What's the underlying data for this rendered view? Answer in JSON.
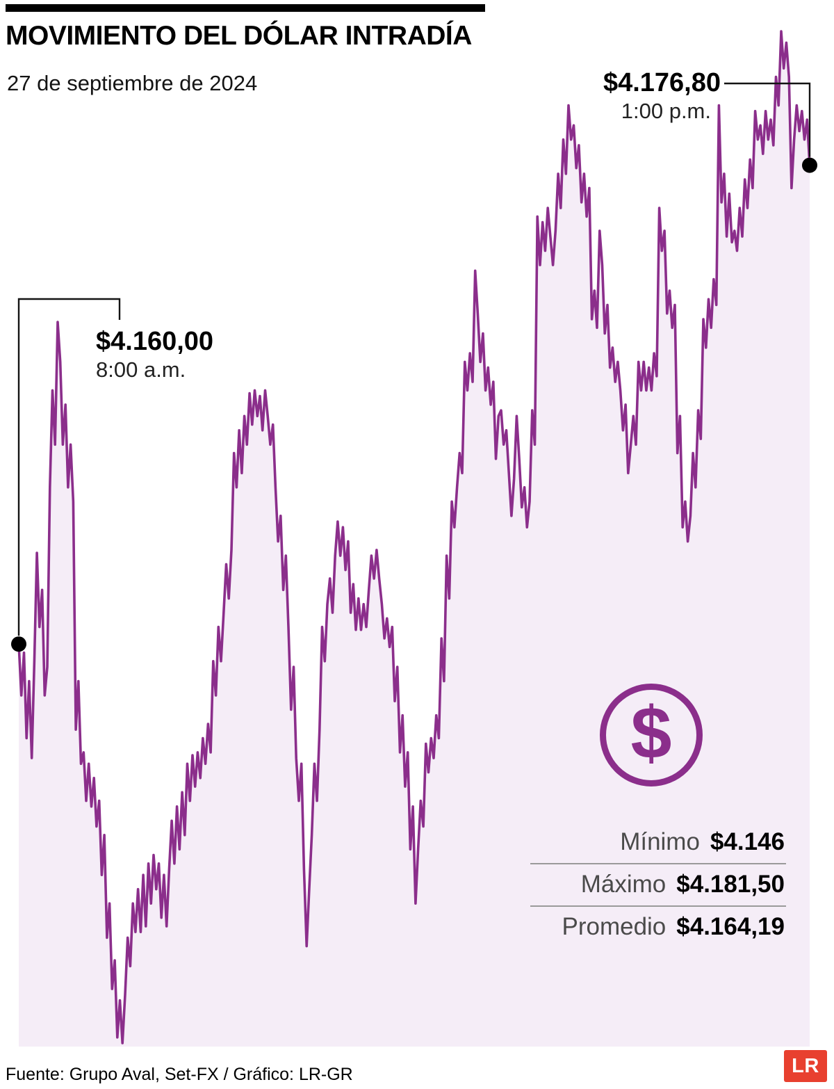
{
  "header": {
    "title": "MOVIMIENTO DEL DÓLAR INTRADÍA",
    "date": "27 de septiembre de 2024"
  },
  "annotations": {
    "start": {
      "value": "$4.160,00",
      "time": "8:00 a.m."
    },
    "end": {
      "value": "$4.176,80",
      "time": "1:00 p.m."
    }
  },
  "stats": {
    "rows": [
      {
        "label": "Mínimo",
        "value": "$4.146"
      },
      {
        "label": "Máximo",
        "value": "$4.181,50"
      },
      {
        "label": "Promedio",
        "value": "$4.164,19"
      }
    ]
  },
  "icon": {
    "dollar": "$"
  },
  "footer": {
    "source": "Fuente: Grupo Aval, Set-FX / Gráfico: LR-GR",
    "logo": "LR"
  },
  "colors": {
    "line": "#8B2E8B",
    "fill": "#F5EDF7",
    "dot": "#000000",
    "logo_bg": "#E8402F"
  },
  "chart_data": {
    "type": "area",
    "title": "Movimiento del dólar intradía",
    "x_start_label": "8:00 a.m.",
    "x_end_label": "1:00 p.m.",
    "start_value": 4160.0,
    "end_value": 4176.8,
    "min": 4146,
    "max": 4181.5,
    "avg": 4164.19,
    "ylim": [
      4146,
      4181.5
    ],
    "grid": false,
    "legend": false,
    "values": [
      4160.0,
      4158.2,
      4159.7,
      4156.7,
      4158.7,
      4156.0,
      4159.4,
      4163.2,
      4160.6,
      4161.9,
      4158.2,
      4159.2,
      4165.5,
      4168.9,
      4167.0,
      4171.3,
      4169.9,
      4167.0,
      4168.4,
      4165.5,
      4167.0,
      4165.0,
      4157.0,
      4158.7,
      4155.8,
      4156.2,
      4154.5,
      4155.8,
      4154.3,
      4155.3,
      4153.6,
      4154.5,
      4151.9,
      4153.3,
      4149.7,
      4150.9,
      4147.9,
      4148.9,
      4146.2,
      4147.5,
      4146.0,
      4147.7,
      4149.7,
      4148.7,
      4150.9,
      4149.9,
      4151.4,
      4149.9,
      4151.9,
      4150.1,
      4152.3,
      4150.9,
      4152.6,
      4151.4,
      4152.3,
      4150.4,
      4151.9,
      4150.1,
      4152.1,
      4153.8,
      4152.3,
      4154.3,
      4152.8,
      4154.8,
      4153.3,
      4155.8,
      4154.5,
      4156.1,
      4155.0,
      4156.2,
      4155.3,
      4156.7,
      4155.8,
      4157.2,
      4156.2,
      4159.4,
      4158.2,
      4160.6,
      4159.4,
      4161.1,
      4162.8,
      4161.6,
      4163.3,
      4166.7,
      4165.5,
      4167.5,
      4166.0,
      4168.0,
      4167.0,
      4168.8,
      4167.7,
      4168.9,
      4168.0,
      4168.7,
      4167.5,
      4168.9,
      4168.0,
      4167.0,
      4167.7,
      4165.5,
      4163.6,
      4164.5,
      4161.9,
      4163.1,
      4160.6,
      4157.7,
      4159.2,
      4156.0,
      4154.5,
      4155.8,
      4152.1,
      4149.4,
      4151.4,
      4153.3,
      4155.8,
      4154.5,
      4157.0,
      4160.6,
      4159.4,
      4161.4,
      4162.3,
      4161.1,
      4163.1,
      4164.3,
      4163.1,
      4164.1,
      4162.6,
      4163.6,
      4161.1,
      4162.1,
      4160.5,
      4161.6,
      4160.5,
      4161.4,
      4160.6,
      4161.9,
      4163.1,
      4162.3,
      4163.3,
      4162.3,
      4161.4,
      4160.2,
      4160.9,
      4159.9,
      4160.6,
      4158.0,
      4159.2,
      4156.2,
      4157.5,
      4155.0,
      4156.2,
      4152.8,
      4154.3,
      4150.9,
      4152.8,
      4154.5,
      4153.6,
      4156.5,
      4155.5,
      4156.7,
      4156.0,
      4157.5,
      4156.7,
      4160.2,
      4158.7,
      4163.1,
      4161.6,
      4165.0,
      4164.1,
      4165.5,
      4166.7,
      4166.0,
      4169.9,
      4168.9,
      4170.2,
      4169.2,
      4173.1,
      4171.6,
      4169.9,
      4170.9,
      4168.9,
      4169.7,
      4168.4,
      4169.2,
      4166.5,
      4168.0,
      4168.2,
      4167.0,
      4167.5,
      4166.0,
      4164.5,
      4165.8,
      4168.0,
      4166.5,
      4164.8,
      4165.5,
      4164.1,
      4165.0,
      4168.2,
      4167.0,
      4175.0,
      4173.3,
      4174.8,
      4173.8,
      4175.3,
      4174.3,
      4173.3,
      4174.5,
      4176.5,
      4175.3,
      4177.7,
      4176.5,
      4178.9,
      4177.7,
      4178.2,
      4176.7,
      4177.5,
      4175.5,
      4176.5,
      4175.0,
      4176.0,
      4171.4,
      4172.4,
      4171.1,
      4174.5,
      4173.3,
      4170.9,
      4171.9,
      4169.7,
      4170.4,
      4169.2,
      4169.9,
      4168.9,
      4167.5,
      4168.4,
      4166.0,
      4167.0,
      4168.0,
      4167.0,
      4169.9,
      4168.9,
      4169.9,
      4168.9,
      4169.7,
      4168.9,
      4170.2,
      4169.4,
      4175.3,
      4173.8,
      4174.5,
      4171.6,
      4172.4,
      4171.1,
      4171.9,
      4166.7,
      4168.0,
      4164.1,
      4165.0,
      4163.6,
      4164.5,
      4166.7,
      4165.5,
      4168.2,
      4167.2,
      4171.4,
      4170.4,
      4172.1,
      4171.1,
      4172.8,
      4171.9,
      4178.9,
      4175.5,
      4176.5,
      4174.3,
      4175.8,
      4174.1,
      4174.5,
      4173.8,
      4175.3,
      4174.3,
      4176.3,
      4175.3,
      4177.0,
      4176.0,
      4178.7,
      4177.7,
      4178.2,
      4177.2,
      4178.7,
      4177.7,
      4178.4,
      4177.5,
      4179.9,
      4178.9,
      4181.5,
      4180.2,
      4181.1,
      4179.9,
      4176.0,
      4177.7,
      4178.9,
      4178.0,
      4178.7,
      4177.7,
      4178.4,
      4176.8
    ]
  }
}
